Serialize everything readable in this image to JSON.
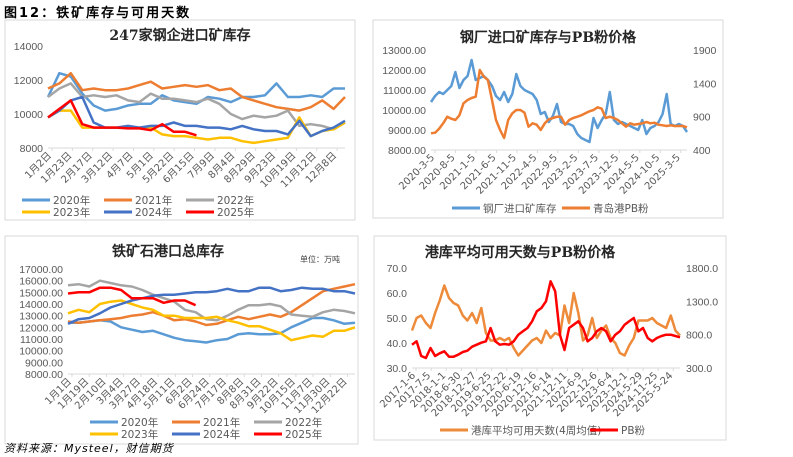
{
  "figure_title": "图12：铁矿库存与可用天数",
  "source": "资料来源：Mysteel，财信期货",
  "chart_data": [
    {
      "type": "line",
      "title": "247家钢企进口矿库存",
      "ylim": [
        8000,
        14000
      ],
      "yticks": [
        "14000",
        "12000",
        "10000",
        "8000"
      ],
      "n_total": 27,
      "x_ticks": [
        "1月2日",
        "1月23日",
        "2月17日",
        "3月12日",
        "4月7日",
        "5月1日",
        "5月22日",
        "6月15日",
        "7月9日",
        "8月4日",
        "8月29日",
        "9月23日",
        "10月19日",
        "11月12日",
        "12月8日"
      ],
      "series": [
        {
          "name": "2020年",
          "color": "#5B9BD5",
          "values": [
            11000,
            12400,
            12200,
            11200,
            10500,
            10200,
            10300,
            10500,
            10600,
            10600,
            11100,
            10800,
            10700,
            10600,
            11000,
            10900,
            10700,
            11000,
            11000,
            11100,
            11800,
            11000,
            11000,
            11100,
            11000,
            11500,
            11500
          ]
        },
        {
          "name": "2021年",
          "color": "#ED7D31",
          "values": [
            11500,
            11800,
            12400,
            11400,
            11500,
            11400,
            11400,
            11500,
            11700,
            11900,
            11500,
            11600,
            11700,
            11600,
            11700,
            11400,
            11500,
            11000,
            10800,
            10600,
            10400,
            10300,
            10200,
            10400,
            10800,
            10300,
            11000
          ]
        },
        {
          "name": "2022年",
          "color": "#A5A5A5",
          "values": [
            11000,
            11500,
            11800,
            11000,
            11100,
            11000,
            11100,
            10800,
            10700,
            11200,
            10900,
            10900,
            10800,
            10700,
            10900,
            10600,
            10000,
            9700,
            9900,
            9800,
            9900,
            10200,
            9300,
            9400,
            9300,
            9100,
            9500
          ]
        },
        {
          "name": "2023年",
          "color": "#FFC000",
          "values": [
            9800,
            10200,
            10200,
            9200,
            9200,
            9200,
            9200,
            9200,
            9200,
            9200,
            8800,
            8700,
            8700,
            8600,
            8500,
            8600,
            8600,
            8400,
            8300,
            8400,
            8500,
            8600,
            9800,
            8700,
            9000,
            9100,
            9500
          ]
        },
        {
          "name": "2024年",
          "color": "#4472C4",
          "values": [
            9800,
            10200,
            10800,
            11000,
            9500,
            9200,
            9200,
            9300,
            9200,
            9300,
            9300,
            9500,
            9300,
            9300,
            9200,
            9200,
            9100,
            9300,
            9100,
            9000,
            9000,
            8800,
            9600,
            8700,
            9000,
            9200,
            9600
          ]
        },
        {
          "name": "2025年",
          "color": "#FF0000",
          "values": [
            9800,
            10300,
            10800,
            9400,
            9200,
            9200,
            9200,
            9150,
            9150,
            9050,
            9400,
            8950,
            8950,
            8750
          ]
        }
      ]
    },
    {
      "type": "line",
      "title": "钢厂进口矿库存与PB粉价格",
      "ylim": [
        8000,
        13000
      ],
      "yticks": [
        "13000.00",
        "12000.00",
        "11000.00",
        "10000.00",
        "9000.00",
        "8000.00"
      ],
      "y2lim": [
        400,
        1900
      ],
      "y2ticks": [
        "1900",
        "1400",
        "900",
        "400"
      ],
      "x_ticks": [
        "2020-3-5",
        "2020-8-5",
        "2021-1-5",
        "2021-6-5",
        "2021-11-5",
        "2022-4-5",
        "2022-9-5",
        "2023-2-5",
        "2023-7-5",
        "2023-12-5",
        "2024-5-5",
        "2024-10-5",
        "2025-3-5"
      ],
      "series": [
        {
          "name": "钢厂进口矿库存",
          "color": "#5B9BD5",
          "axis": "left",
          "values": [
            10400,
            10700,
            10900,
            10800,
            11000,
            11200,
            11900,
            11100,
            11500,
            11700,
            12500,
            11500,
            11600,
            11700,
            11500,
            11200,
            10700,
            10500,
            10900,
            10400,
            10800,
            11800,
            11200,
            11000,
            10900,
            10800,
            10500,
            9800,
            9900,
            9400,
            9700,
            10300,
            9400,
            9300,
            9300,
            9200,
            8800,
            8600,
            8500,
            8400,
            9600,
            9100,
            9500,
            9800,
            10900,
            9500,
            9300,
            9400,
            9300,
            9200,
            9100,
            9000,
            9500,
            8800,
            9100,
            9200,
            9400,
            9800,
            10800,
            9300,
            9200,
            9300,
            9200,
            8900
          ]
        },
        {
          "name": "青岛港PB粉",
          "color": "#ED7D31",
          "axis": "right",
          "values": [
            650,
            660,
            720,
            800,
            900,
            870,
            850,
            920,
            1100,
            1150,
            1180,
            1200,
            1600,
            1500,
            1450,
            1150,
            850,
            700,
            580,
            850,
            950,
            1000,
            1000,
            960,
            750,
            800,
            780,
            700,
            800,
            860,
            880,
            900,
            900,
            780,
            850,
            880,
            900,
            920,
            950,
            980,
            1000,
            1040,
            1020,
            880,
            900,
            880,
            850,
            800,
            750,
            800,
            780,
            790,
            800,
            820,
            800,
            810,
            780,
            770,
            760,
            770,
            760,
            760,
            760,
            740
          ]
        }
      ]
    },
    {
      "type": "line",
      "title": "铁矿石港口总库存",
      "unit": "单位：万吨",
      "ylim": [
        8000,
        17000
      ],
      "yticks": [
        "17000.00",
        "16000.00",
        "15000.00",
        "14000.00",
        "13000.00",
        "12000.00",
        "11000.00",
        "10000.00",
        "9000.00",
        "8000.00"
      ],
      "n_total": 28,
      "x_ticks": [
        "1月1日",
        "1月19日",
        "2月10日",
        "3月4日",
        "3月27日",
        "4月18日",
        "5月11日",
        "6月2日",
        "6月24日",
        "7月17日",
        "8月8日",
        "8月31日",
        "9月22日",
        "10月15日",
        "11月7日",
        "11月30日",
        "12月22日"
      ],
      "series": [
        {
          "name": "2020年",
          "color": "#5B9BD5",
          "values": [
            12400,
            12400,
            12500,
            12600,
            12500,
            12000,
            11800,
            11600,
            11700,
            11400,
            11100,
            10900,
            10800,
            10700,
            10900,
            11000,
            11400,
            11500,
            11400,
            11400,
            11500,
            12000,
            12400,
            12800,
            12800,
            12600,
            12300,
            12400
          ]
        },
        {
          "name": "2021年",
          "color": "#ED7D31",
          "values": [
            12500,
            12400,
            12500,
            12600,
            12700,
            12800,
            13000,
            13100,
            13300,
            13000,
            12600,
            12700,
            12500,
            12200,
            12300,
            12600,
            12900,
            12700,
            12900,
            13100,
            12900,
            13300,
            13900,
            14500,
            15100,
            15300,
            15500,
            15700
          ]
        },
        {
          "name": "2022年",
          "color": "#A5A5A5",
          "values": [
            15600,
            15700,
            15500,
            16000,
            15800,
            15600,
            15500,
            15200,
            14800,
            14500,
            14200,
            13500,
            13300,
            12700,
            12600,
            13000,
            13500,
            13900,
            13900,
            14000,
            13800,
            13100,
            13000,
            12900,
            13300,
            13500,
            13400,
            13200
          ]
        },
        {
          "name": "2023年",
          "color": "#FFC000",
          "values": [
            13200,
            13500,
            13300,
            14000,
            14200,
            14300,
            14000,
            13700,
            13500,
            13000,
            13000,
            12800,
            12800,
            12800,
            12900,
            12600,
            12400,
            12100,
            12100,
            11800,
            11500,
            10900,
            11100,
            11300,
            11200,
            11700,
            11700,
            12000
          ]
        },
        {
          "name": "2024年",
          "color": "#4472C4",
          "values": [
            12300,
            12700,
            12800,
            13200,
            13700,
            14000,
            14300,
            14500,
            14700,
            14800,
            14800,
            14900,
            15000,
            15000,
            15100,
            15300,
            15100,
            15100,
            15400,
            15400,
            15100,
            15200,
            15400,
            15300,
            15300,
            15100,
            15100,
            14900
          ]
        },
        {
          "name": "2025年",
          "color": "#FF0000",
          "values": [
            14900,
            15000,
            15000,
            15400,
            15400,
            15200,
            14500,
            14500,
            14500,
            14100,
            14300,
            14300,
            13900
          ]
        }
      ]
    },
    {
      "type": "line",
      "title": "港库平均可用天数与PB粉价格",
      "ylim": [
        30,
        70
      ],
      "yticks": [
        "70.0",
        "60.0",
        "50.0",
        "40.0",
        "30.0"
      ],
      "y2lim": [
        300,
        1800
      ],
      "y2ticks": [
        "1800.0",
        "1300.0",
        "800.0",
        "300.0"
      ],
      "x_ticks": [
        "2017-1-6",
        "2017-7-5",
        "2018-1-1",
        "2018-6-30",
        "2018-12-27",
        "2019-6-25",
        "2019-12-22",
        "2020-6-19",
        "2020-12-16",
        "2021-6-14",
        "2021-12-11",
        "2022-6-9",
        "2022-12-6",
        "2023-6-4",
        "2023-12-1",
        "2024-5-29",
        "2024-11-25",
        "2025-5-24"
      ],
      "series": [
        {
          "name": "港库平均可用天数(4周均值)",
          "color": "#ED8B3A",
          "axis": "left",
          "values": [
            45,
            50,
            51,
            48,
            46,
            52,
            57,
            63,
            58,
            56,
            55,
            51,
            49,
            52,
            48,
            54,
            44,
            41,
            41,
            42,
            41,
            42,
            38,
            35,
            37,
            39,
            41,
            42,
            40,
            45,
            42,
            44,
            43,
            55,
            48,
            60,
            52,
            41,
            43,
            50,
            42,
            45,
            47,
            42,
            40,
            36,
            35,
            39,
            42,
            49,
            49,
            49,
            50,
            48,
            47,
            46,
            51,
            45,
            43
          ]
        },
        {
          "name": "PB粉",
          "color": "#FF0000",
          "axis": "right",
          "values": [
            650,
            700,
            480,
            450,
            600,
            480,
            520,
            550,
            470,
            470,
            500,
            540,
            560,
            620,
            650,
            680,
            700,
            900,
            700,
            650,
            660,
            650,
            700,
            800,
            850,
            900,
            1000,
            1150,
            1200,
            1300,
            1600,
            1450,
            800,
            570,
            900,
            950,
            1000,
            900,
            700,
            750,
            850,
            900,
            850,
            700,
            800,
            850,
            950,
            1000,
            1050,
            850,
            900,
            750,
            700,
            750,
            780,
            800,
            800,
            780,
            760
          ]
        }
      ]
    }
  ]
}
